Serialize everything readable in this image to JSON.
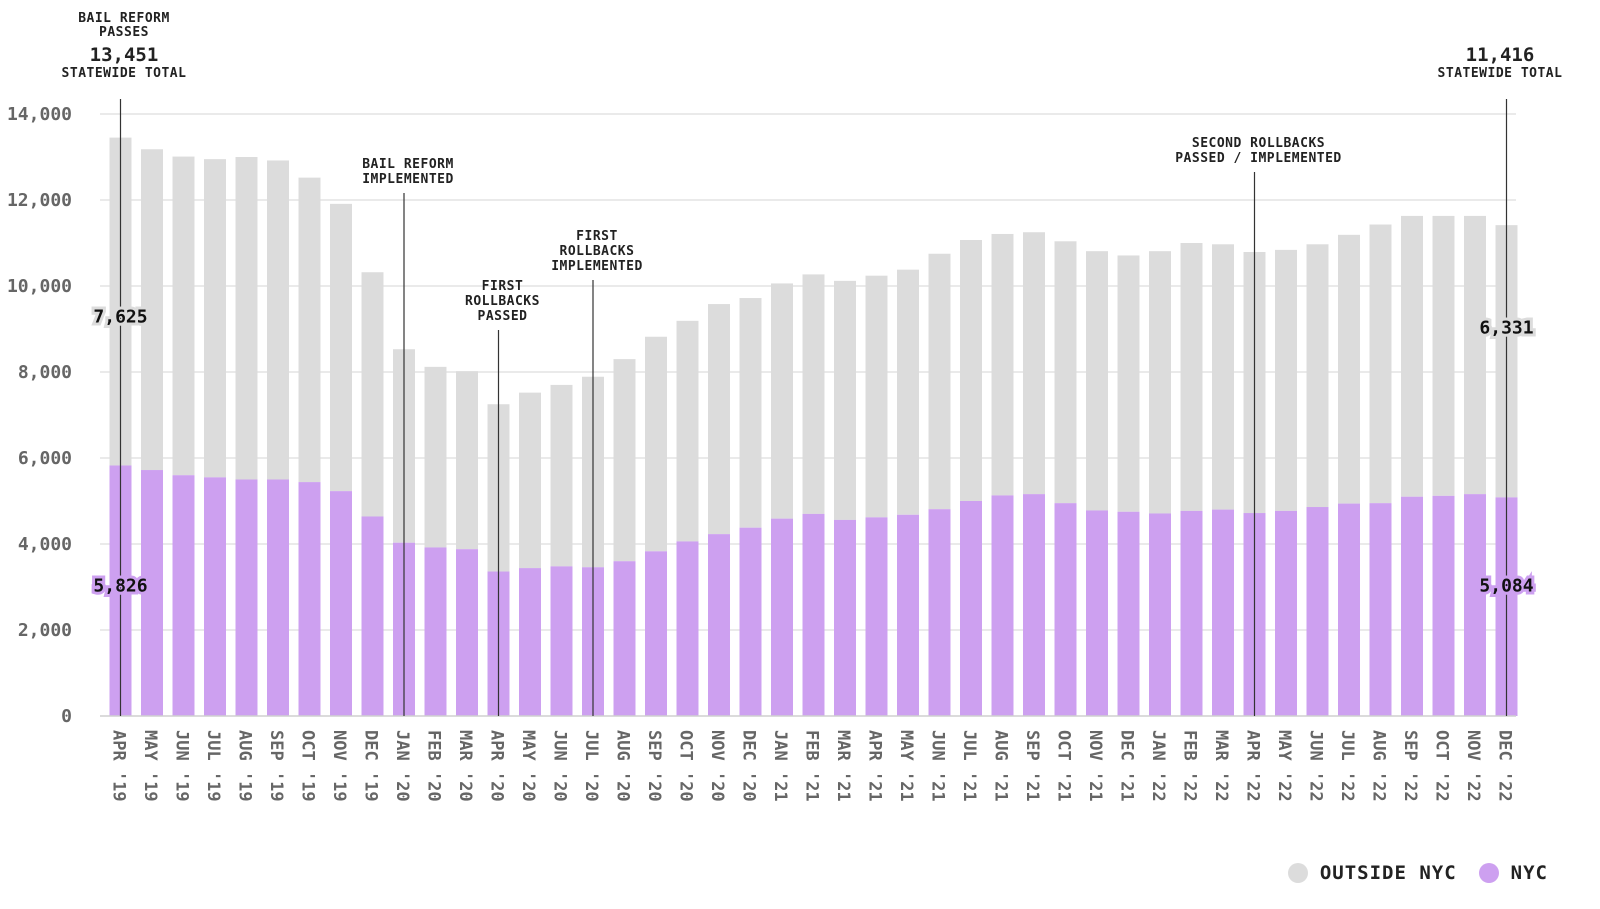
{
  "chart_data": {
    "type": "bar",
    "stacked": true,
    "categories": [
      "APR '19",
      "MAY '19",
      "JUN '19",
      "JUL '19",
      "AUG '19",
      "SEP '19",
      "OCT '19",
      "NOV '19",
      "DEC '19",
      "JAN '20",
      "FEB '20",
      "MAR '20",
      "APR '20",
      "MAY '20",
      "JUN '20",
      "JUL '20",
      "AUG '20",
      "SEP '20",
      "OCT '20",
      "NOV '20",
      "DEC '20",
      "JAN '21",
      "FEB '21",
      "MAR '21",
      "APR '21",
      "MAY '21",
      "JUN '21",
      "JUL '21",
      "AUG '21",
      "SEP '21",
      "OCT '21",
      "NOV '21",
      "DEC '21",
      "JAN '22",
      "FEB '22",
      "MAR '22",
      "APR '22",
      "MAY '22",
      "JUN '22",
      "JUL '22",
      "AUG '22",
      "SEP '22",
      "OCT '22",
      "NOV '22",
      "DEC '22"
    ],
    "series": [
      {
        "name": "NYC",
        "color": "#cda0f0",
        "values": [
          5826,
          5720,
          5600,
          5550,
          5500,
          5500,
          5440,
          5230,
          4640,
          4030,
          3920,
          3880,
          3360,
          3440,
          3480,
          3460,
          3600,
          3830,
          4060,
          4230,
          4380,
          4590,
          4700,
          4560,
          4620,
          4680,
          4810,
          5000,
          5130,
          5160,
          4950,
          4780,
          4750,
          4710,
          4770,
          4800,
          4720,
          4770,
          4860,
          4940,
          4950,
          5100,
          5120,
          5160,
          5084
        ]
      },
      {
        "name": "OUTSIDE NYC",
        "color": "#dcdcdc",
        "values": [
          7625,
          7460,
          7410,
          7400,
          7500,
          7420,
          7080,
          6680,
          5680,
          4500,
          4200,
          4140,
          3890,
          4080,
          4220,
          4430,
          4700,
          4990,
          5130,
          5350,
          5340,
          5470,
          5570,
          5560,
          5620,
          5700,
          5940,
          6070,
          6080,
          6090,
          6090,
          6030,
          5960,
          6100,
          6230,
          6170,
          6070,
          6070,
          6110,
          6250,
          6480,
          6530,
          6510,
          6470,
          6331
        ]
      }
    ],
    "ylim": [
      0,
      14000
    ],
    "yticks": [
      0,
      2000,
      4000,
      6000,
      8000,
      10000,
      12000,
      14000
    ],
    "ytick_labels": [
      "0",
      "2,000",
      "4,000",
      "6,000",
      "8,000",
      "10,000",
      "12,000",
      "14,000"
    ],
    "grid": true,
    "legend_position": "bottom-right",
    "annotations": [
      {
        "index": 0,
        "lines": [
          "BAIL REFORM",
          "PASSES"
        ],
        "value": "13,451",
        "sub": "STATEWIDE TOTAL",
        "style": "big"
      },
      {
        "index": 9,
        "lines": [
          "BAIL REFORM",
          "IMPLEMENTED"
        ]
      },
      {
        "index": 12,
        "lines": [
          "FIRST",
          "ROLLBACKS",
          "PASSED"
        ]
      },
      {
        "index": 15,
        "lines": [
          "FIRST",
          "ROLLBACKS",
          "IMPLEMENTED"
        ]
      },
      {
        "index": 36,
        "lines": [
          "SECOND ROLLBACKS",
          "PASSED / IMPLEMENTED"
        ]
      },
      {
        "index": 44,
        "lines": [],
        "value": "11,416",
        "sub": "STATEWIDE TOTAL",
        "style": "big"
      }
    ],
    "value_labels": [
      {
        "index": 0,
        "series": "OUTSIDE NYC",
        "text": "7,625"
      },
      {
        "index": 0,
        "series": "NYC",
        "text": "5,826"
      },
      {
        "index": 44,
        "series": "OUTSIDE NYC",
        "text": "6,331"
      },
      {
        "index": 44,
        "series": "NYC",
        "text": "5,084"
      }
    ]
  },
  "legend": [
    {
      "label": "OUTSIDE NYC",
      "color": "#dcdcdc"
    },
    {
      "label": "NYC",
      "color": "#cda0f0"
    }
  ]
}
